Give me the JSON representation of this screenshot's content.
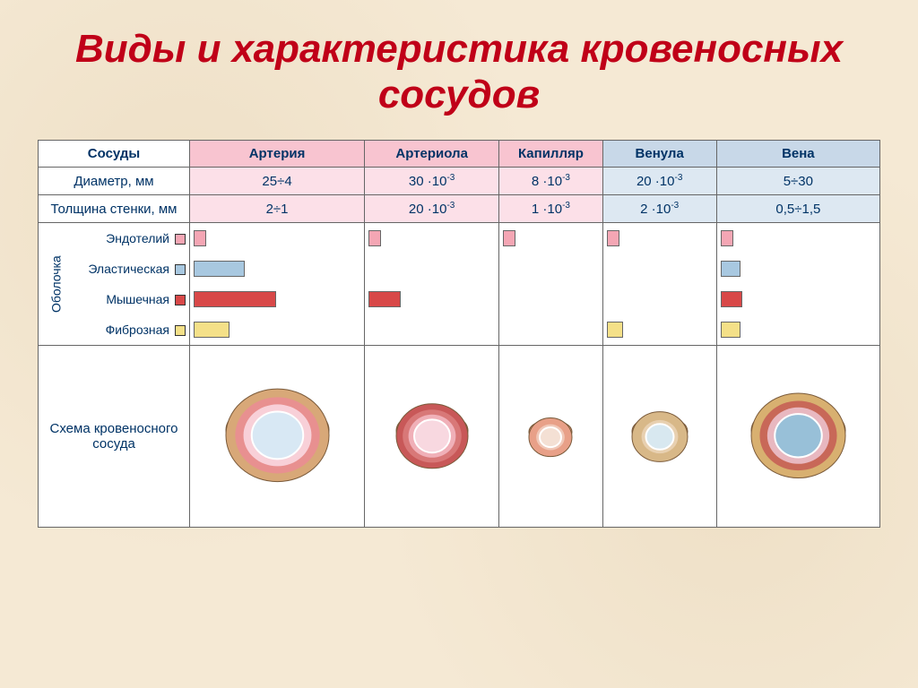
{
  "title": "Виды и характеристика кровеносных сосудов",
  "colors": {
    "title": "#c00018",
    "background": "#f5e9d4",
    "text": "#003366",
    "pink_header": "#f8c4d0",
    "blue_header": "#c8d8e8",
    "pink_cell": "#fce0e8",
    "blue_cell": "#dde8f2",
    "bar_endothelium": "#f4a6b4",
    "bar_elastic": "#a8c8e0",
    "bar_muscular": "#d84848",
    "bar_fibrous": "#f4e088"
  },
  "row_labels": {
    "vessels": "Сосуды",
    "diameter": "Диаметр, мм",
    "thickness": "Толщина стенки, мм",
    "membrane": "Оболочка",
    "scheme": "Схема кровеносного сосуда"
  },
  "layer_labels": {
    "endothelium": "Эндотелий",
    "elastic": "Эластическая",
    "muscular": "Мышечная",
    "fibrous": "Фиброзная"
  },
  "vessels": [
    {
      "name": "Артерия",
      "header_bg": "#f8c4d0",
      "cell_bg": "#fce0e8",
      "diameter": "25÷4",
      "thickness": "2÷1",
      "bars": {
        "endothelium": 12,
        "elastic": 55,
        "muscular": 90,
        "fibrous": 38
      },
      "art": {
        "outer": "#d8a878",
        "mid": "#e89090",
        "inner": "#f8d0d8",
        "lumen": "#d8e8f4",
        "size": 115
      }
    },
    {
      "name": "Артериола",
      "header_bg": "#f8c4d0",
      "cell_bg": "#fce0e8",
      "diameter": "30 ·10⁻³",
      "thickness": "20 ·10⁻³",
      "bars": {
        "endothelium": 12,
        "elastic": 0,
        "muscular": 34,
        "fibrous": 0
      },
      "art": {
        "outer": "#c85858",
        "mid": "#d87878",
        "inner": "#f0b0b8",
        "lumen": "#f8d8e0",
        "size": 80
      }
    },
    {
      "name": "Капилляр",
      "header_bg": "#f8c4d0",
      "cell_bg": "#fce0e8",
      "diameter": "8 ·10⁻³",
      "thickness": "1 ·10⁻³",
      "bars": {
        "endothelium": 12,
        "elastic": 0,
        "muscular": 0,
        "fibrous": 0
      },
      "art": {
        "outer": "#e8a088",
        "mid": "#e8a088",
        "inner": "#f0c8b8",
        "lumen": "#f4e0d4",
        "size": 48
      }
    },
    {
      "name": "Венула",
      "header_bg": "#c8d8e8",
      "cell_bg": "#dde8f2",
      "diameter": "20 ·10⁻³",
      "thickness": "2 ·10⁻³",
      "bars": {
        "endothelium": 12,
        "elastic": 0,
        "muscular": 0,
        "fibrous": 16
      },
      "art": {
        "outer": "#d8b888",
        "mid": "#d8b888",
        "inner": "#e8d0b0",
        "lumen": "#d8e8f0",
        "size": 62
      }
    },
    {
      "name": "Вена",
      "header_bg": "#c8d8e8",
      "cell_bg": "#dde8f2",
      "diameter": "5÷30",
      "thickness": "0,5÷1,5",
      "bars": {
        "endothelium": 12,
        "elastic": 20,
        "muscular": 22,
        "fibrous": 20
      },
      "art": {
        "outer": "#d8b070",
        "mid": "#c86858",
        "inner": "#e8b8c0",
        "lumen": "#98c0d8",
        "size": 105
      }
    }
  ]
}
